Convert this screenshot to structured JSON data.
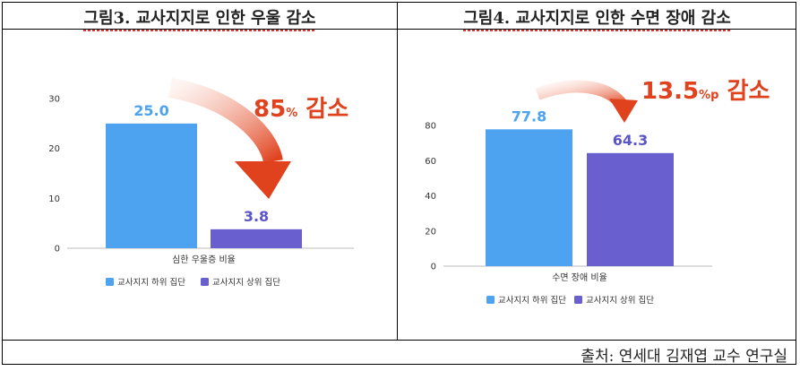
{
  "panels": [
    {
      "title": "그림3. 교사지지로 인한 우울 감소"
    },
    {
      "title": "그림4. 교사지지로 인한 수면 장애 감소"
    }
  ],
  "source": "출처: 연세대 김재엽 교수 연구실",
  "chart_data": [
    {
      "type": "bar",
      "categories": [
        "심한 우울증 비율"
      ],
      "series": [
        {
          "name": "교사지지 하위 집단",
          "values": [
            25.0
          ],
          "color": "#4da3f0",
          "label_color": "#4da3f0"
        },
        {
          "name": "교사지지 상위 집단",
          "values": [
            3.8
          ],
          "color": "#6a5fcf",
          "label_color": "#5b55c8"
        }
      ],
      "value_labels": [
        "25.0",
        "3.8"
      ],
      "ylim": [
        0,
        30
      ],
      "yticks": [
        "0",
        "10",
        "20",
        "30"
      ],
      "annotation": {
        "main": "85",
        "unit": "%",
        "suffix": " 감소"
      },
      "legend": "bottom"
    },
    {
      "type": "bar",
      "categories": [
        "수면 장애 비율"
      ],
      "series": [
        {
          "name": "교사지지 하위 집단",
          "values": [
            77.8
          ],
          "color": "#4da3f0",
          "label_color": "#4da3f0"
        },
        {
          "name": "교사지지 상위 집단",
          "values": [
            64.3
          ],
          "color": "#6a5fcf",
          "label_color": "#5b55c8"
        }
      ],
      "value_labels": [
        "77.8",
        "64.3"
      ],
      "ylim": [
        0,
        80
      ],
      "yticks": [
        "0",
        "20",
        "40",
        "60",
        "80"
      ],
      "annotation": {
        "main": "13.5",
        "unit": "%p",
        "suffix": " 감소"
      },
      "legend": "bottom"
    }
  ]
}
